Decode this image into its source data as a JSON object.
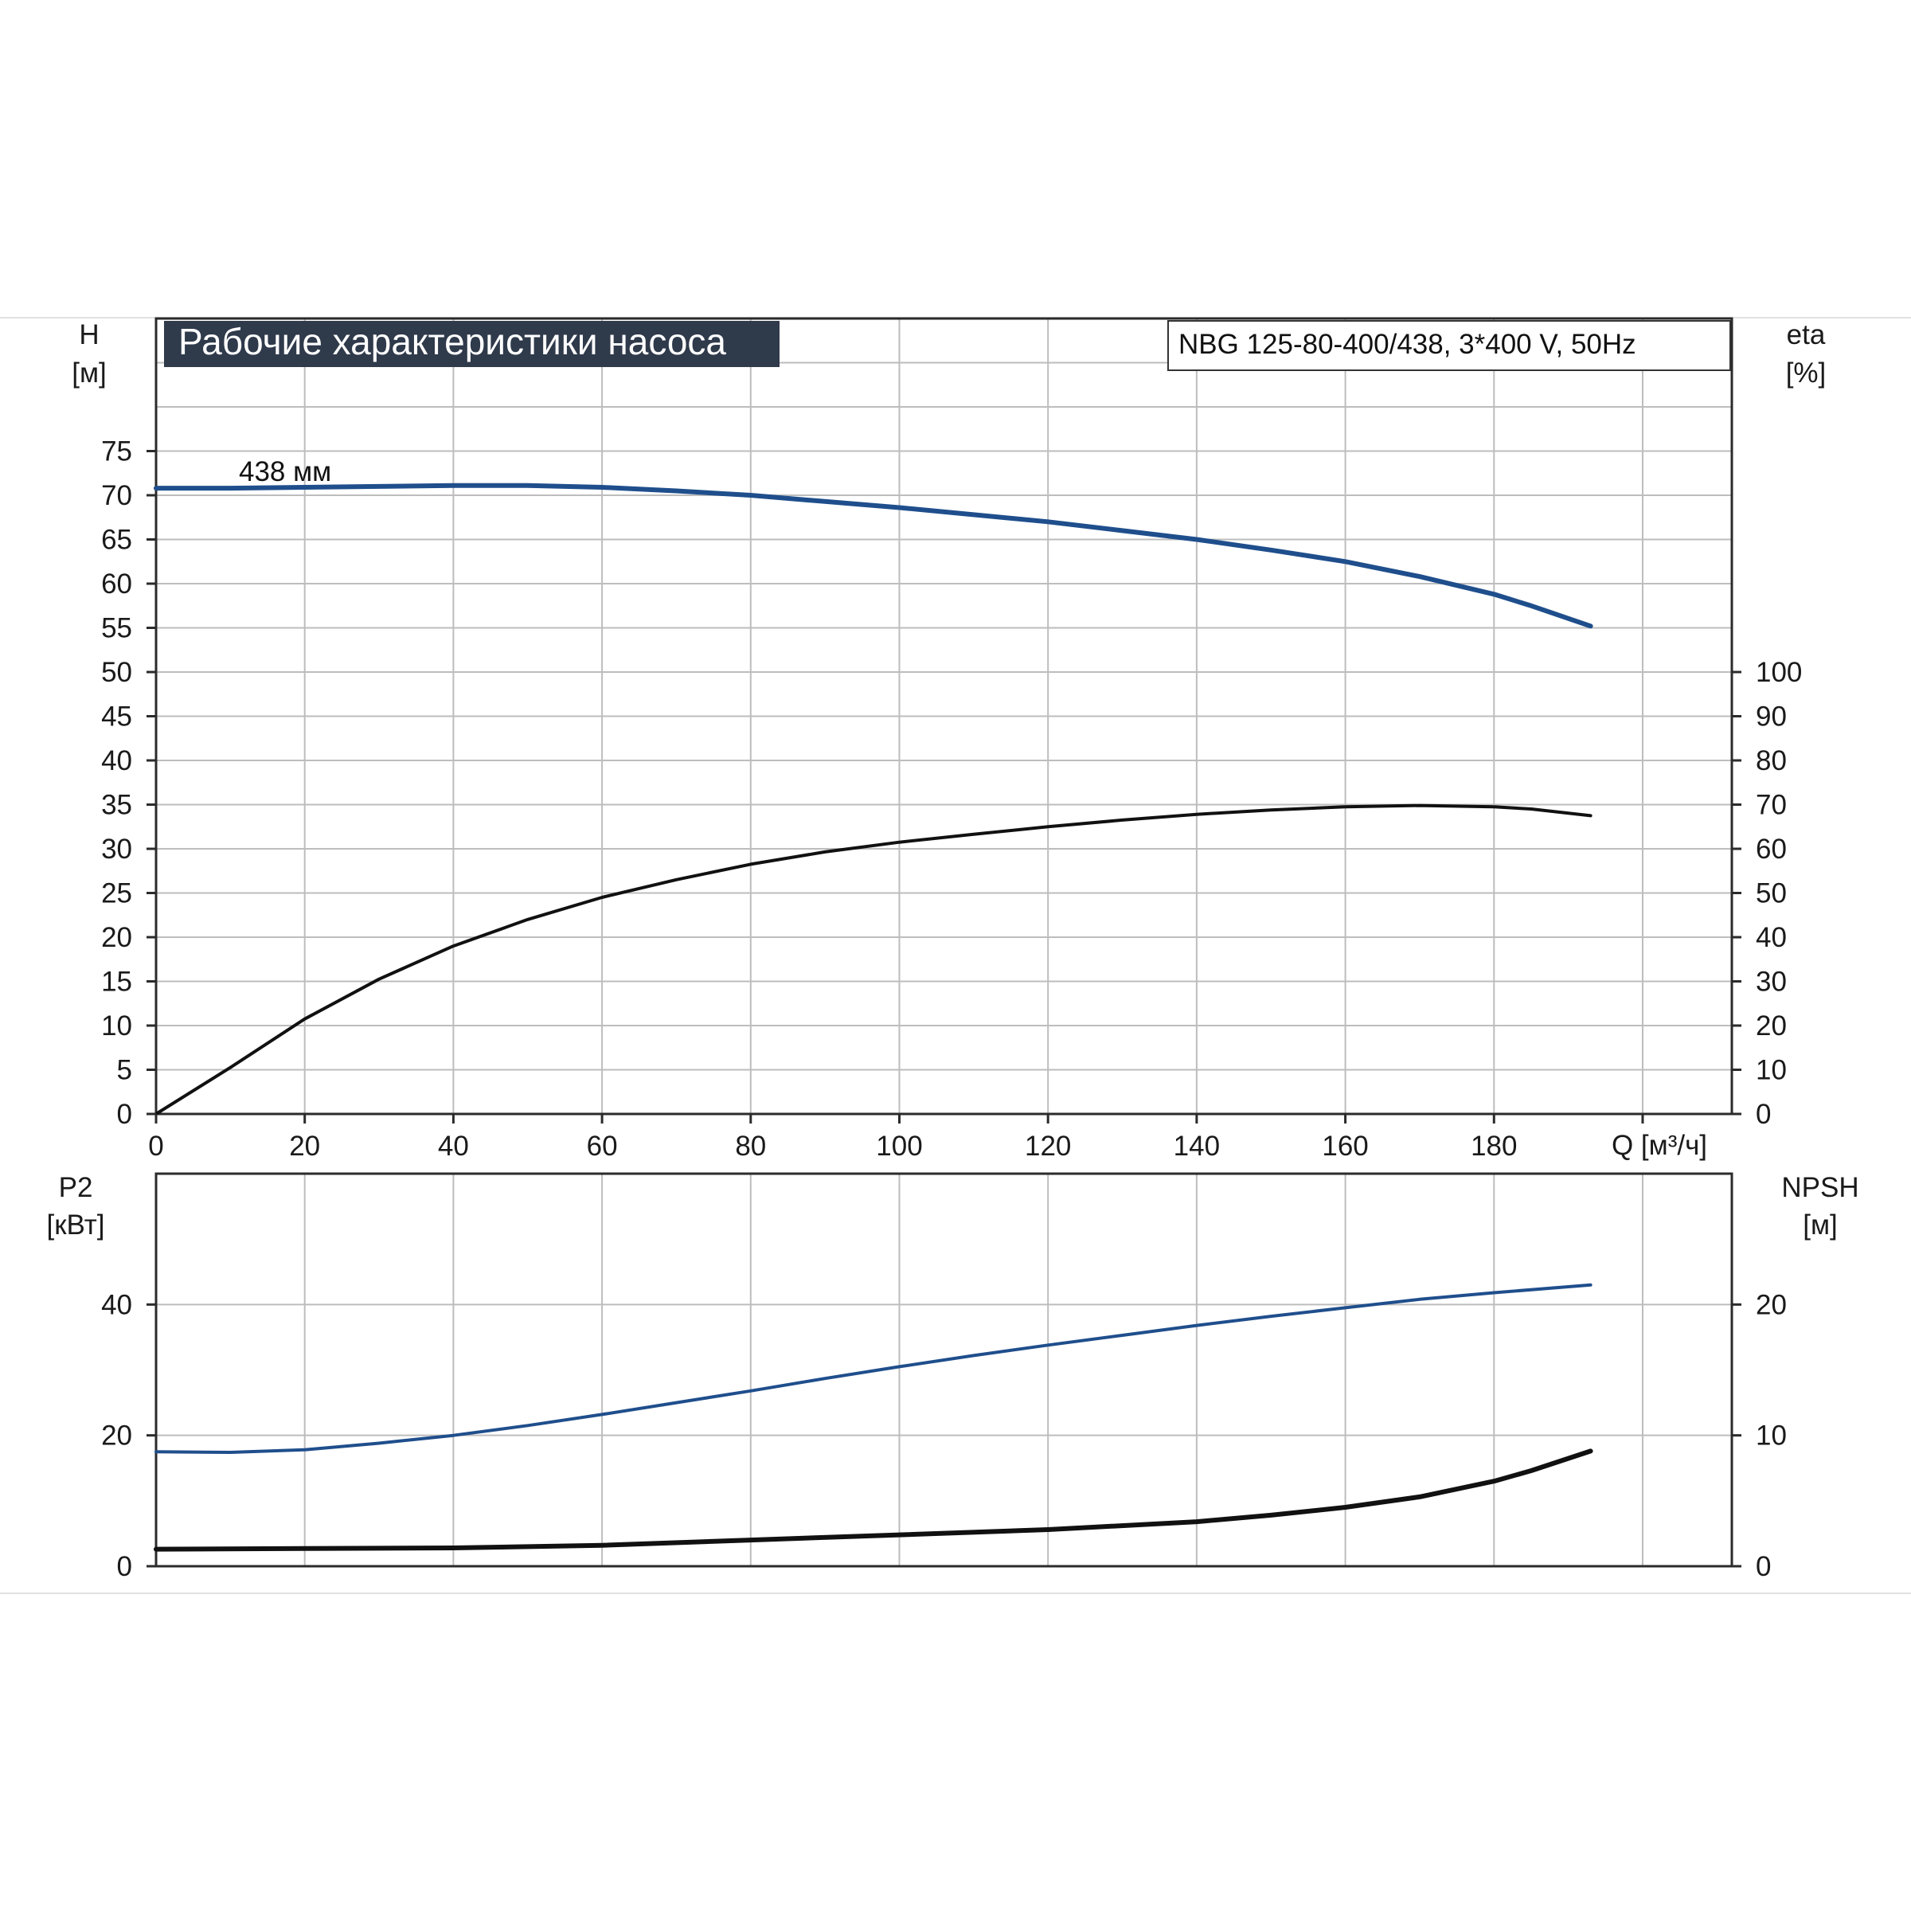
{
  "chart_data": [
    {
      "type": "line",
      "panel": "top",
      "title": "Рабочие характеристики насоса",
      "model_label": "NBG 125-80-400/438, 3*400 V, 50Hz",
      "x_axis": {
        "label": "Q [м³/ч]",
        "ticks": [
          "0",
          "20",
          "40",
          "60",
          "80",
          "100",
          "120",
          "140",
          "160",
          "180"
        ],
        "range": [
          0,
          212
        ]
      },
      "y_left": {
        "label_line1": "H",
        "label_line2": "[м]",
        "ticks": [
          "0",
          "5",
          "10",
          "15",
          "20",
          "25",
          "30",
          "35",
          "40",
          "45",
          "50",
          "55",
          "60",
          "65",
          "70",
          "75"
        ],
        "range": [
          0,
          90
        ]
      },
      "y_right": {
        "label_line1": "eta",
        "label_line2": "[%]",
        "ticks": [
          "0",
          "10",
          "20",
          "30",
          "40",
          "50",
          "60",
          "70",
          "80",
          "90",
          "100"
        ],
        "range": [
          0,
          180
        ]
      },
      "grid": true,
      "series": [
        {
          "name": "438 мм",
          "axis": "left",
          "color": "#1f4e8c",
          "x": [
            0,
            10,
            20,
            30,
            40,
            50,
            60,
            70,
            80,
            90,
            100,
            110,
            120,
            130,
            140,
            150,
            160,
            170,
            180,
            185,
            193
          ],
          "y": [
            70.8,
            70.8,
            70.9,
            71.0,
            71.1,
            71.1,
            70.9,
            70.5,
            70.0,
            69.3,
            68.6,
            67.8,
            67.0,
            66.0,
            65.0,
            63.8,
            62.5,
            60.8,
            58.8,
            57.5,
            55.2
          ]
        },
        {
          "axis": "right",
          "color": "#111111",
          "x": [
            0,
            10,
            20,
            30,
            40,
            50,
            60,
            70,
            80,
            90,
            100,
            110,
            120,
            130,
            140,
            150,
            160,
            170,
            180,
            185,
            193
          ],
          "y": [
            0,
            10.5,
            21.5,
            30.5,
            38,
            44,
            49,
            53,
            56.5,
            59.3,
            61.5,
            63.3,
            65,
            66.5,
            67.8,
            68.8,
            69.5,
            69.8,
            69.5,
            69,
            67.5
          ]
        }
      ]
    },
    {
      "type": "line",
      "panel": "bottom",
      "x_axis": {
        "range": [
          0,
          212
        ]
      },
      "y_left": {
        "label_line1": "P2",
        "label_line2": "[кВт]",
        "ticks": [
          "0",
          "20",
          "40"
        ],
        "range": [
          0,
          60
        ]
      },
      "y_right": {
        "label_line1": "NPSH",
        "label_line2": "[м]",
        "ticks": [
          "0",
          "10",
          "20"
        ],
        "range": [
          0,
          30
        ]
      },
      "grid": true,
      "series": [
        {
          "axis": "left",
          "color": "#1f4e8c",
          "x": [
            0,
            10,
            20,
            30,
            40,
            50,
            60,
            70,
            80,
            90,
            100,
            110,
            120,
            130,
            140,
            150,
            160,
            170,
            180,
            193
          ],
          "y": [
            17.5,
            17.4,
            17.8,
            18.8,
            20.0,
            21.5,
            23.2,
            25.0,
            26.8,
            28.7,
            30.5,
            32.2,
            33.8,
            35.3,
            36.8,
            38.2,
            39.5,
            40.8,
            41.8,
            43.0
          ]
        },
        {
          "axis": "right",
          "color": "#111111",
          "x": [
            0,
            20,
            40,
            60,
            80,
            100,
            120,
            140,
            150,
            160,
            170,
            180,
            185,
            193
          ],
          "y": [
            1.3,
            1.35,
            1.4,
            1.6,
            2.0,
            2.4,
            2.8,
            3.4,
            3.9,
            4.5,
            5.3,
            6.5,
            7.3,
            8.8
          ]
        }
      ]
    }
  ]
}
